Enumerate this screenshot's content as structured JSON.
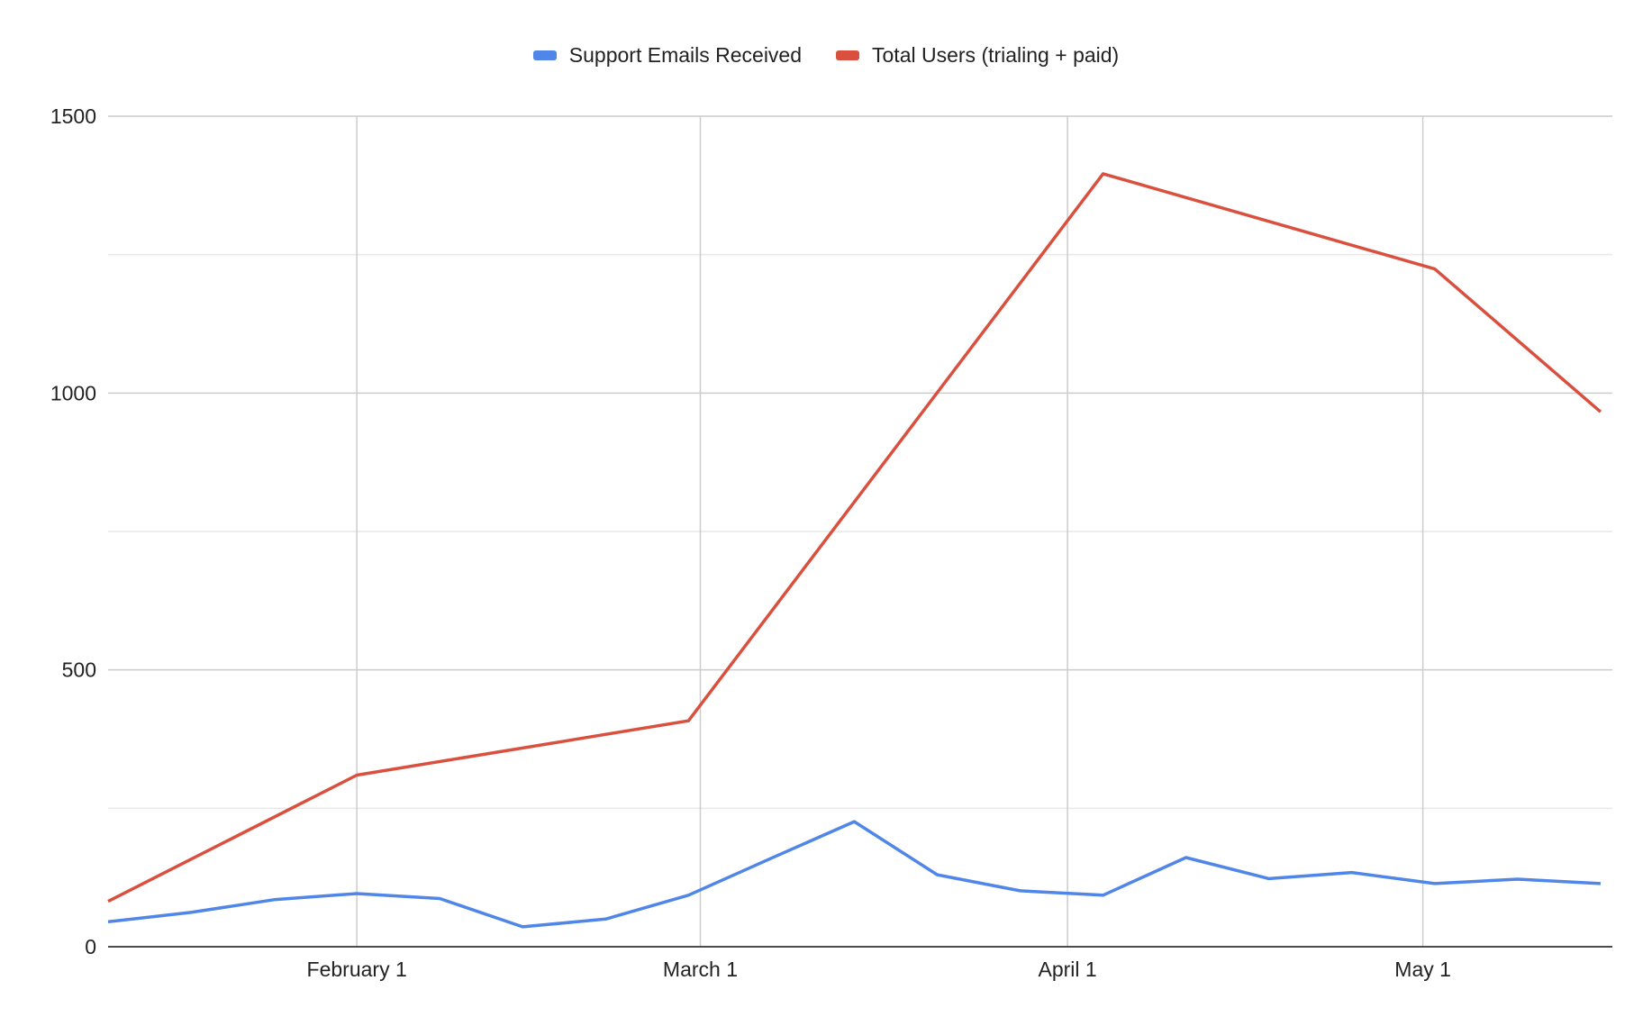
{
  "chart_data": {
    "type": "line",
    "title": "",
    "xlabel": "",
    "ylabel": "",
    "legend_position": "top-center",
    "grid": true,
    "x_axis": {
      "type": "date",
      "range": [
        "2024-01-11",
        "2024-05-17"
      ],
      "ticks": [
        {
          "date": "2024-02-01",
          "label": "February 1"
        },
        {
          "date": "2024-03-01",
          "label": "March 1"
        },
        {
          "date": "2024-04-01",
          "label": "April 1"
        },
        {
          "date": "2024-05-01",
          "label": "May 1"
        }
      ]
    },
    "y_axis": {
      "range": [
        0,
        1500
      ],
      "ticks": [
        {
          "value": 0,
          "label": "0"
        },
        {
          "value": 500,
          "label": "500"
        },
        {
          "value": 1000,
          "label": "1000"
        },
        {
          "value": 1500,
          "label": "1500"
        }
      ],
      "minor_gridlines": [
        250,
        750,
        1250
      ]
    },
    "series": [
      {
        "name": "Support Emails Received",
        "color": "#5086E8",
        "points": [
          {
            "x": "2024-01-11",
            "y": 45
          },
          {
            "x": "2024-01-18",
            "y": 62
          },
          {
            "x": "2024-01-25",
            "y": 85
          },
          {
            "x": "2024-02-01",
            "y": 96
          },
          {
            "x": "2024-02-08",
            "y": 87
          },
          {
            "x": "2024-02-15",
            "y": 36
          },
          {
            "x": "2024-02-22",
            "y": 50
          },
          {
            "x": "2024-02-29",
            "y": 93
          },
          {
            "x": "2024-03-07",
            "y": 160
          },
          {
            "x": "2024-03-14",
            "y": 226
          },
          {
            "x": "2024-03-21",
            "y": 130
          },
          {
            "x": "2024-03-28",
            "y": 101
          },
          {
            "x": "2024-04-04",
            "y": 93
          },
          {
            "x": "2024-04-11",
            "y": 161
          },
          {
            "x": "2024-04-18",
            "y": 123
          },
          {
            "x": "2024-04-25",
            "y": 134
          },
          {
            "x": "2024-05-02",
            "y": 114
          },
          {
            "x": "2024-05-09",
            "y": 122
          },
          {
            "x": "2024-05-16",
            "y": 114
          }
        ]
      },
      {
        "name": "Total Users (trialing + paid)",
        "color": "#D9503F",
        "points": [
          {
            "x": "2024-01-11",
            "y": 82
          },
          {
            "x": "2024-02-01",
            "y": 310
          },
          {
            "x": "2024-02-29",
            "y": 408
          },
          {
            "x": "2024-04-04",
            "y": 1396
          },
          {
            "x": "2024-05-02",
            "y": 1224
          },
          {
            "x": "2024-05-16",
            "y": 966
          }
        ]
      }
    ]
  }
}
